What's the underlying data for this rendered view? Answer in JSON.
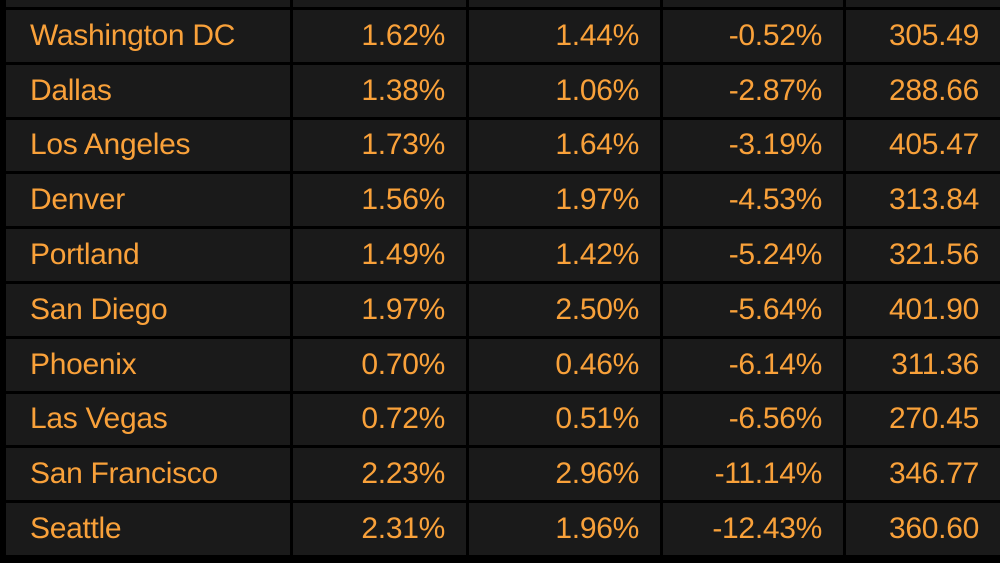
{
  "colors": {
    "accent_text": "#f9a13a",
    "cell_background": "#1a1a1a",
    "gridline": "#000000"
  },
  "table": {
    "rows": [
      {
        "city": "Washington DC",
        "v1": "1.62%",
        "v2": "1.44%",
        "v3": "-0.52%",
        "v4": "305.49"
      },
      {
        "city": "Dallas",
        "v1": "1.38%",
        "v2": "1.06%",
        "v3": "-2.87%",
        "v4": "288.66"
      },
      {
        "city": "Los Angeles",
        "v1": "1.73%",
        "v2": "1.64%",
        "v3": "-3.19%",
        "v4": "405.47"
      },
      {
        "city": "Denver",
        "v1": "1.56%",
        "v2": "1.97%",
        "v3": "-4.53%",
        "v4": "313.84"
      },
      {
        "city": "Portland",
        "v1": "1.49%",
        "v2": "1.42%",
        "v3": "-5.24%",
        "v4": "321.56"
      },
      {
        "city": "San Diego",
        "v1": "1.97%",
        "v2": "2.50%",
        "v3": "-5.64%",
        "v4": "401.90"
      },
      {
        "city": "Phoenix",
        "v1": "0.70%",
        "v2": "0.46%",
        "v3": "-6.14%",
        "v4": "311.36"
      },
      {
        "city": "Las Vegas",
        "v1": "0.72%",
        "v2": "0.51%",
        "v3": "-6.56%",
        "v4": "270.45"
      },
      {
        "city": "San Francisco",
        "v1": "2.23%",
        "v2": "2.96%",
        "v3": "-11.14%",
        "v4": "346.77"
      },
      {
        "city": "Seattle",
        "v1": "2.31%",
        "v2": "1.96%",
        "v3": "-12.43%",
        "v4": "360.60"
      }
    ]
  }
}
